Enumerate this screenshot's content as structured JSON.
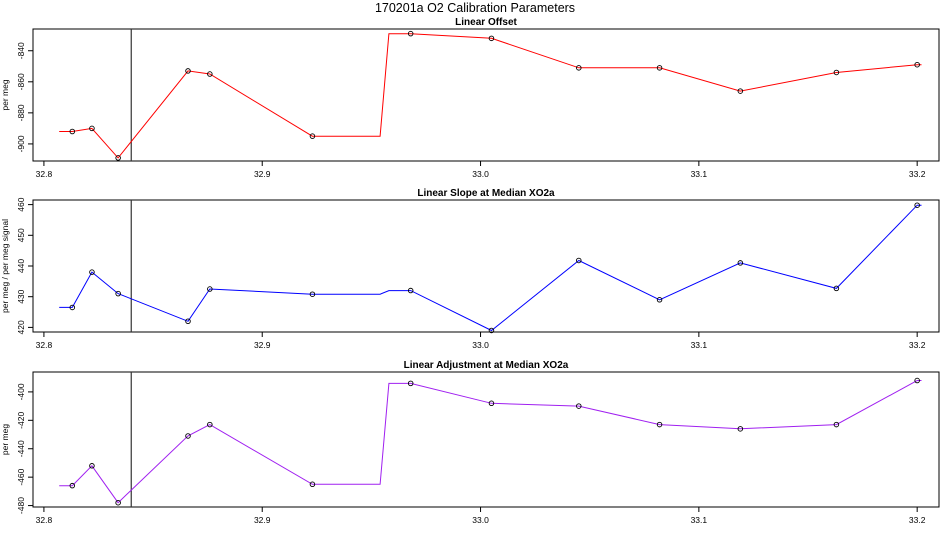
{
  "title": "170201a   O2 Calibration Parameters",
  "chart_data": [
    {
      "type": "line",
      "title": "Linear Offset",
      "ylabel": "per meg",
      "xlim": [
        32.795,
        33.21
      ],
      "ylim": [
        -911,
        -826
      ],
      "xticks": [
        32.8,
        32.9,
        33.0,
        33.1,
        33.2
      ],
      "xtick_labels": [
        "32.8",
        "32.9",
        "33.0",
        "33.1",
        "33.2"
      ],
      "yticks": [
        -900,
        -880,
        -860,
        -840
      ],
      "ytick_labels": [
        "-900",
        "-880",
        "-860",
        "-840"
      ],
      "vline_x": 32.84,
      "grid": false,
      "color": "#ff0000",
      "line": {
        "x": [
          32.807,
          32.813,
          32.822,
          32.834,
          32.866,
          32.876,
          32.923,
          32.954,
          32.958,
          32.968,
          33.005,
          33.045,
          33.082,
          33.119,
          33.163,
          33.2,
          33.202
        ],
        "y": [
          -892,
          -892,
          -890,
          -909,
          -853,
          -855,
          -895,
          -895,
          -829,
          -829,
          -832,
          -851,
          -851,
          -866,
          -854,
          -849,
          -849
        ]
      },
      "points": {
        "x": [
          32.813,
          32.822,
          32.834,
          32.866,
          32.876,
          32.923,
          32.968,
          33.005,
          33.045,
          33.082,
          33.119,
          33.163,
          33.2
        ],
        "y": [
          -892,
          -890,
          -909,
          -853,
          -855,
          -895,
          -829,
          -832,
          -851,
          -851,
          -866,
          -854,
          -849
        ]
      }
    },
    {
      "type": "line",
      "title": "Linear Slope at Median XO2a",
      "ylabel": "per meg / per meg signal",
      "xlim": [
        32.795,
        33.21
      ],
      "ylim": [
        418.5,
        461.5
      ],
      "xticks": [
        32.8,
        32.9,
        33.0,
        33.1,
        33.2
      ],
      "xtick_labels": [
        "32.8",
        "32.9",
        "33.0",
        "33.1",
        "33.2"
      ],
      "yticks": [
        420,
        430,
        440,
        450,
        460
      ],
      "ytick_labels": [
        "420",
        "430",
        "440",
        "450",
        "460"
      ],
      "vline_x": 32.84,
      "grid": false,
      "color": "#0000ff",
      "line": {
        "x": [
          32.807,
          32.813,
          32.822,
          32.834,
          32.866,
          32.876,
          32.923,
          32.954,
          32.958,
          32.968,
          33.005,
          33.045,
          33.082,
          33.119,
          33.163,
          33.2,
          33.202
        ],
        "y": [
          426.5,
          426.5,
          438,
          431,
          422,
          432.5,
          430.8,
          430.8,
          432,
          432,
          419,
          441.8,
          429,
          441,
          432.7,
          459.8,
          459.8
        ]
      },
      "points": {
        "x": [
          32.813,
          32.822,
          32.834,
          32.866,
          32.876,
          32.923,
          32.968,
          33.005,
          33.045,
          33.082,
          33.119,
          33.163,
          33.2
        ],
        "y": [
          426.5,
          438,
          431,
          422,
          432.5,
          430.8,
          432,
          419,
          441.8,
          429,
          441,
          432.7,
          459.8
        ]
      }
    },
    {
      "type": "line",
      "title": "Linear Adjustment at Median XO2a",
      "ylabel": "per meg",
      "xlim": [
        32.795,
        33.21
      ],
      "ylim": [
        -481,
        -386
      ],
      "xticks": [
        32.8,
        32.9,
        33.0,
        33.1,
        33.2
      ],
      "xtick_labels": [
        "32.8",
        "32.9",
        "33.0",
        "33.1",
        "33.2"
      ],
      "yticks": [
        -480,
        -460,
        -440,
        -420,
        -400
      ],
      "ytick_labels": [
        "-480",
        "-460",
        "-440",
        "-420",
        "-400"
      ],
      "vline_x": 32.84,
      "grid": false,
      "color": "#a020f0",
      "line": {
        "x": [
          32.807,
          32.813,
          32.822,
          32.834,
          32.866,
          32.876,
          32.923,
          32.954,
          32.958,
          32.968,
          33.005,
          33.045,
          33.082,
          33.119,
          33.163,
          33.2,
          33.202
        ],
        "y": [
          -466,
          -466,
          -452,
          -478,
          -431,
          -423,
          -465,
          -465,
          -394,
          -394,
          -408,
          -410,
          -423,
          -426,
          -423,
          -392,
          -392
        ]
      },
      "points": {
        "x": [
          32.813,
          32.822,
          32.834,
          32.866,
          32.876,
          32.923,
          32.968,
          33.005,
          33.045,
          33.082,
          33.119,
          33.163,
          33.2
        ],
        "y": [
          -466,
          -452,
          -478,
          -431,
          -423,
          -465,
          -394,
          -408,
          -410,
          -423,
          -426,
          -423,
          -392
        ]
      }
    }
  ]
}
